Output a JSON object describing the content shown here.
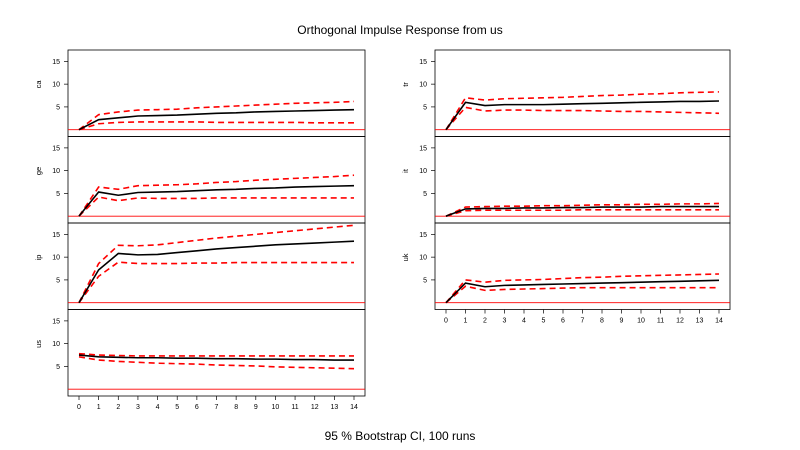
{
  "chart_data": {
    "type": "line",
    "title": "Orthogonal Impulse Response from us",
    "xlabel": "95 % Bootstrap CI, 100 runs",
    "x": [
      0,
      1,
      2,
      3,
      4,
      5,
      6,
      7,
      8,
      9,
      10,
      11,
      12,
      13,
      14
    ],
    "x_ticks": [
      "0",
      "1",
      "2",
      "3",
      "4",
      "5",
      "6",
      "7",
      "8",
      "9",
      "10",
      "11",
      "12",
      "13",
      "14"
    ],
    "y_ticks": [
      "5",
      "10",
      "15"
    ],
    "ylim": [
      -1.5,
      17.5
    ],
    "zero_line_color": "#ff0000",
    "response_color": "#000000",
    "ci_color": "#ff0000",
    "columns": [
      {
        "panels": [
          {
            "name": "ca",
            "response": [
              0,
              2.2,
              2.6,
              3.0,
              3.1,
              3.2,
              3.4,
              3.6,
              3.7,
              3.9,
              4.0,
              4.1,
              4.2,
              4.3,
              4.4
            ],
            "upper": [
              0,
              3.3,
              3.9,
              4.3,
              4.4,
              4.5,
              4.8,
              5.0,
              5.2,
              5.4,
              5.6,
              5.8,
              5.9,
              6.0,
              6.2
            ],
            "lower": [
              0,
              1.3,
              1.6,
              1.7,
              1.7,
              1.7,
              1.7,
              1.6,
              1.6,
              1.6,
              1.6,
              1.6,
              1.5,
              1.5,
              1.5
            ]
          },
          {
            "name": "ge",
            "response": [
              0,
              5.3,
              4.6,
              5.2,
              5.3,
              5.4,
              5.6,
              5.8,
              5.9,
              6.1,
              6.2,
              6.4,
              6.5,
              6.6,
              6.7
            ],
            "upper": [
              0,
              6.4,
              5.9,
              6.7,
              6.8,
              6.9,
              7.1,
              7.4,
              7.6,
              7.9,
              8.1,
              8.3,
              8.5,
              8.7,
              9.0
            ],
            "lower": [
              0,
              4.2,
              3.4,
              4.0,
              3.9,
              3.9,
              3.9,
              4.0,
              4.0,
              4.0,
              4.0,
              4.0,
              4.0,
              4.0,
              4.0
            ]
          },
          {
            "name": "ip",
            "response": [
              0,
              7.2,
              10.8,
              10.5,
              10.6,
              11.0,
              11.4,
              11.8,
              12.1,
              12.4,
              12.7,
              12.9,
              13.1,
              13.3,
              13.5
            ],
            "upper": [
              0,
              8.6,
              12.6,
              12.5,
              12.7,
              13.2,
              13.7,
              14.2,
              14.6,
              15.0,
              15.4,
              15.8,
              16.2,
              16.6,
              17.0
            ],
            "lower": [
              0,
              5.8,
              8.9,
              8.6,
              8.6,
              8.6,
              8.7,
              8.7,
              8.8,
              8.8,
              8.8,
              8.8,
              8.8,
              8.8,
              8.8
            ]
          },
          {
            "name": "us",
            "response": [
              7.5,
              7.1,
              7.0,
              6.9,
              6.9,
              6.8,
              6.8,
              6.7,
              6.7,
              6.6,
              6.6,
              6.5,
              6.5,
              6.4,
              6.4
            ],
            "upper": [
              7.8,
              7.5,
              7.4,
              7.3,
              7.3,
              7.3,
              7.3,
              7.3,
              7.3,
              7.3,
              7.3,
              7.3,
              7.3,
              7.3,
              7.3
            ],
            "lower": [
              7.1,
              6.4,
              6.1,
              5.9,
              5.7,
              5.6,
              5.5,
              5.3,
              5.2,
              5.1,
              4.9,
              4.8,
              4.7,
              4.6,
              4.5
            ]
          }
        ]
      },
      {
        "panels": [
          {
            "name": "tr",
            "response": [
              0,
              6.0,
              5.3,
              5.5,
              5.5,
              5.5,
              5.6,
              5.7,
              5.8,
              5.9,
              6.0,
              6.1,
              6.2,
              6.2,
              6.3
            ],
            "upper": [
              0,
              7.0,
              6.5,
              6.8,
              6.9,
              7.0,
              7.1,
              7.3,
              7.5,
              7.6,
              7.8,
              7.9,
              8.1,
              8.2,
              8.3
            ],
            "lower": [
              0,
              4.9,
              4.1,
              4.3,
              4.3,
              4.2,
              4.2,
              4.2,
              4.1,
              4.0,
              4.0,
              3.9,
              3.8,
              3.7,
              3.6
            ]
          },
          {
            "name": "it",
            "response": [
              0,
              1.6,
              1.7,
              1.7,
              1.8,
              1.8,
              1.9,
              1.9,
              2.0,
              2.0,
              2.0,
              2.1,
              2.1,
              2.1,
              2.1
            ],
            "upper": [
              0,
              2.0,
              2.1,
              2.2,
              2.2,
              2.3,
              2.3,
              2.4,
              2.5,
              2.5,
              2.6,
              2.6,
              2.7,
              2.7,
              2.8
            ],
            "lower": [
              0,
              1.2,
              1.3,
              1.3,
              1.3,
              1.3,
              1.3,
              1.4,
              1.4,
              1.4,
              1.4,
              1.4,
              1.4,
              1.4,
              1.4
            ]
          },
          {
            "name": "uk",
            "response": [
              0,
              4.3,
              3.5,
              3.8,
              3.9,
              4.0,
              4.1,
              4.2,
              4.3,
              4.4,
              4.5,
              4.6,
              4.7,
              4.8,
              4.9
            ],
            "upper": [
              0,
              5.0,
              4.5,
              4.9,
              5.0,
              5.1,
              5.3,
              5.5,
              5.6,
              5.8,
              5.9,
              6.0,
              6.1,
              6.2,
              6.3
            ],
            "lower": [
              0,
              3.6,
              2.7,
              2.9,
              3.0,
              3.1,
              3.2,
              3.3,
              3.3,
              3.3,
              3.3,
              3.3,
              3.3,
              3.3,
              3.3
            ]
          }
        ]
      }
    ]
  }
}
